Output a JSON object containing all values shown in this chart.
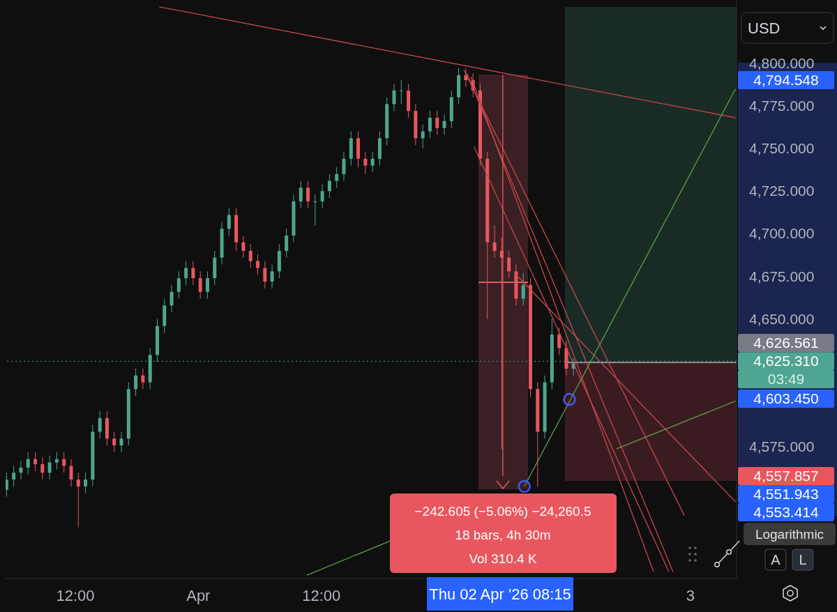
{
  "chart_data": {
    "type": "candlestick",
    "x": [
      "2026-03-31T05:18",
      "2026-03-31T06:00",
      "2026-03-31T06:42",
      "2026-03-31T07:24",
      "2026-03-31T08:06",
      "2026-03-31T08:48",
      "2026-03-31T09:30",
      "2026-03-31T10:12",
      "2026-03-31T10:54",
      "2026-03-31T11:36",
      "2026-03-31T12:18",
      "2026-03-31T13:00",
      "2026-03-31T13:42",
      "2026-03-31T14:24",
      "2026-03-31T15:06",
      "2026-03-31T15:48",
      "2026-03-31T16:30",
      "2026-03-31T17:12",
      "2026-03-31T17:54",
      "2026-03-31T18:36",
      "2026-03-31T19:18",
      "2026-03-31T20:00",
      "2026-03-31T20:42",
      "2026-03-31T21:24",
      "2026-03-31T22:06",
      "2026-03-31T22:48",
      "2026-03-31T23:30",
      "2026-04-01T00:12",
      "2026-04-01T00:54",
      "2026-04-01T01:36",
      "2026-04-01T02:18",
      "2026-04-01T03:00",
      "2026-04-01T03:42",
      "2026-04-01T04:24",
      "2026-04-01T05:06",
      "2026-04-01T05:48",
      "2026-04-01T06:30",
      "2026-04-01T07:12",
      "2026-04-01T07:54",
      "2026-04-01T08:36",
      "2026-04-01T09:18",
      "2026-04-01T10:00",
      "2026-04-01T10:42",
      "2026-04-01T11:24",
      "2026-04-01T12:06",
      "2026-04-01T12:48",
      "2026-04-01T13:30",
      "2026-04-01T14:12",
      "2026-04-01T14:54",
      "2026-04-01T15:36",
      "2026-04-01T16:18",
      "2026-04-01T17:00",
      "2026-04-01T17:42",
      "2026-04-01T18:24",
      "2026-04-01T19:06",
      "2026-04-01T19:48",
      "2026-04-01T20:30",
      "2026-04-01T21:12",
      "2026-04-01T21:54",
      "2026-04-01T22:36",
      "2026-04-01T23:18",
      "2026-04-02T00:00",
      "2026-04-02T00:42",
      "2026-04-02T01:24",
      "2026-04-02T02:06",
      "2026-04-02T02:48",
      "2026-04-02T03:30",
      "2026-04-02T04:12",
      "2026-04-02T04:54",
      "2026-04-02T05:36",
      "2026-04-02T06:18",
      "2026-04-02T07:00",
      "2026-04-02T07:42",
      "2026-04-02T08:24",
      "2026-04-02T09:06",
      "2026-04-02T09:48",
      "2026-04-02T10:30",
      "2026-04-02T11:12",
      "2026-04-02T11:54",
      "2026-04-02T12:36"
    ],
    "ohlc": [
      [
        4550,
        4560,
        4546,
        4556
      ],
      [
        4556,
        4564,
        4552,
        4560
      ],
      [
        4560,
        4567,
        4556,
        4563
      ],
      [
        4563,
        4572,
        4559,
        4568
      ],
      [
        4568,
        4572,
        4561,
        4565
      ],
      [
        4565,
        4569,
        4556,
        4560
      ],
      [
        4560,
        4570,
        4556,
        4566
      ],
      [
        4566,
        4572,
        4562,
        4568
      ],
      [
        4568,
        4572,
        4560,
        4564
      ],
      [
        4564,
        4568,
        4552,
        4556
      ],
      [
        4556,
        4560,
        4528,
        4552
      ],
      [
        4552,
        4560,
        4548,
        4556
      ],
      [
        4556,
        4588,
        4552,
        4584
      ],
      [
        4584,
        4596,
        4580,
        4592
      ],
      [
        4592,
        4596,
        4576,
        4580
      ],
      [
        4580,
        4584,
        4572,
        4576
      ],
      [
        4576,
        4584,
        4572,
        4580
      ],
      [
        4580,
        4613,
        4576,
        4609
      ],
      [
        4609,
        4621,
        4605,
        4617
      ],
      [
        4617,
        4621,
        4609,
        4613
      ],
      [
        4613,
        4633,
        4609,
        4629
      ],
      [
        4629,
        4650,
        4625,
        4646
      ],
      [
        4646,
        4662,
        4642,
        4658
      ],
      [
        4658,
        4670,
        4654,
        4666
      ],
      [
        4666,
        4678,
        4662,
        4674
      ],
      [
        4674,
        4684,
        4670,
        4680
      ],
      [
        4680,
        4684,
        4670,
        4674
      ],
      [
        4674,
        4678,
        4662,
        4666
      ],
      [
        4666,
        4678,
        4662,
        4674
      ],
      [
        4674,
        4690,
        4670,
        4686
      ],
      [
        4686,
        4707,
        4682,
        4703
      ],
      [
        4703,
        4715,
        4699,
        4711
      ],
      [
        4711,
        4715,
        4690,
        4695
      ],
      [
        4695,
        4699,
        4686,
        4690
      ],
      [
        4690,
        4694,
        4680,
        4684
      ],
      [
        4684,
        4688,
        4676,
        4680
      ],
      [
        4680,
        4684,
        4668,
        4672
      ],
      [
        4672,
        4682,
        4668,
        4678
      ],
      [
        4678,
        4694,
        4674,
        4690
      ],
      [
        4690,
        4703,
        4686,
        4699
      ],
      [
        4699,
        4723,
        4695,
        4719
      ],
      [
        4719,
        4731,
        4715,
        4727
      ],
      [
        4727,
        4731,
        4715,
        4719
      ],
      [
        4719,
        4723,
        4705,
        4719
      ],
      [
        4719,
        4729,
        4715,
        4725
      ],
      [
        4725,
        4735,
        4721,
        4731
      ],
      [
        4731,
        4739,
        4727,
        4735
      ],
      [
        4735,
        4748,
        4731,
        4744
      ],
      [
        4744,
        4760,
        4740,
        4756
      ],
      [
        4756,
        4760,
        4739,
        4744
      ],
      [
        4744,
        4748,
        4735,
        4740
      ],
      [
        4740,
        4748,
        4736,
        4744
      ],
      [
        4744,
        4760,
        4740,
        4756
      ],
      [
        4756,
        4780,
        4752,
        4776
      ],
      [
        4776,
        4788,
        4772,
        4784
      ],
      [
        4784,
        4790,
        4776,
        4784
      ],
      [
        4784,
        4788,
        4768,
        4772
      ],
      [
        4772,
        4776,
        4752,
        4756
      ],
      [
        4756,
        4764,
        4750,
        4760
      ],
      [
        4760,
        4772,
        4756,
        4768
      ],
      [
        4768,
        4772,
        4758,
        4762
      ],
      [
        4762,
        4770,
        4758,
        4766
      ],
      [
        4766,
        4784,
        4762,
        4780
      ],
      [
        4780,
        4797,
        4776,
        4793
      ],
      [
        4793,
        4797,
        4786,
        4790
      ],
      [
        4790,
        4794,
        4780,
        4784
      ],
      [
        4784,
        4788,
        4740,
        4744
      ],
      [
        4744,
        4748,
        4650,
        4695
      ],
      [
        4695,
        4705,
        4686,
        4690
      ],
      [
        4690,
        4698,
        4574,
        4686
      ],
      [
        4686,
        4690,
        4674,
        4678
      ],
      [
        4678,
        4682,
        4658,
        4662
      ],
      [
        4662,
        4677,
        4658,
        4670
      ],
      [
        4670,
        4674,
        4604,
        4609
      ],
      [
        4609,
        4613,
        4552,
        4584
      ],
      [
        4584,
        4617,
        4580,
        4613
      ],
      [
        4613,
        4650,
        4609,
        4641
      ],
      [
        4641,
        4645,
        4629,
        4633
      ],
      [
        4633,
        4637,
        4617,
        4621
      ],
      [
        4621,
        4627,
        4617,
        4625
      ]
    ],
    "series": [
      {
        "type": "line",
        "color": "#c9474f",
        "x": [
          "2026-03-31T20:12",
          "2026-04-03T04:24"
        ],
        "values": [
          4833,
          4768
        ]
      },
      {
        "type": "line",
        "color": "#c9474f",
        "x": [
          "2026-04-02T01:54",
          "2026-04-02T23:24"
        ],
        "values": [
          4796,
          4535
        ]
      },
      {
        "type": "line",
        "color": "#c9474f",
        "x": [
          "2026-04-02T02:12",
          "2026-04-02T22:18"
        ],
        "values": [
          4794,
          4502
        ]
      },
      {
        "type": "line",
        "color": "#c9474f",
        "x": [
          "2026-04-02T02:36",
          "2026-04-02T20:24"
        ],
        "values": [
          4792,
          4502
        ]
      },
      {
        "type": "line",
        "color": "#c9474f",
        "x": [
          "2026-04-02T02:54",
          "2026-04-02T21:54"
        ],
        "values": [
          4751,
          4502
        ]
      },
      {
        "type": "line",
        "color": "#c9474f",
        "x": [
          "2026-04-02T07:00",
          "2026-04-03T04:24"
        ],
        "values": [
          4676,
          4543
        ]
      },
      {
        "type": "line",
        "color": "#5f9e4f",
        "x": [
          "2026-04-02T07:48",
          "2026-04-03T04:24"
        ],
        "values": [
          4552,
          4785
        ]
      },
      {
        "type": "line",
        "color": "#5f9e4f",
        "x": [
          "2026-04-01T10:36",
          "2026-04-01T18:42"
        ],
        "values": [
          4500,
          4520
        ]
      },
      {
        "type": "line",
        "color": "#5f9e4f",
        "x": [
          "2026-04-02T16:48",
          "2026-04-03T04:24"
        ],
        "values": [
          4574,
          4602
        ]
      },
      {
        "type": "line",
        "color": "#e8575f",
        "x": [
          "2026-04-02T05:42",
          "2026-04-02T05:42"
        ],
        "values": [
          4793,
          4558
        ]
      },
      {
        "type": "scatter",
        "color": "#3d5afe",
        "marker": "circle",
        "x": [
          "2026-04-02T07:48",
          "2026-04-02T12:12"
        ],
        "values": [
          4552,
          4603
        ]
      }
    ],
    "xlim": [
      "2026-03-31T05:12",
      "2026-04-03T04:30"
    ],
    "xticks": [
      {
        "value": "2026-03-31T12:00",
        "label": "12:00"
      },
      {
        "value": "2026-04-01",
        "label": "Apr"
      },
      {
        "value": "2026-04-01T12:00",
        "label": "12:00"
      },
      {
        "value": "2026-04-03",
        "label": "3"
      }
    ],
    "ylim": [
      4498,
      4837
    ],
    "yticks": [
      {
        "value": 4575,
        "label": "4,575.000"
      },
      {
        "value": 4650,
        "label": "4,650.000"
      },
      {
        "value": 4675,
        "label": "4,675.000"
      },
      {
        "value": 4700,
        "label": "4,700.000"
      },
      {
        "value": 4725,
        "label": "4,725.000"
      },
      {
        "value": 4750,
        "label": "4,750.000"
      },
      {
        "value": 4775,
        "label": "4,775.000"
      },
      {
        "value": 4800,
        "label": "4,800.000"
      }
    ],
    "ref_lines": [
      {
        "axis": "y",
        "value": 4625.31,
        "label": "4,625.310",
        "color": "#4ea690",
        "line_style": "dotted"
      }
    ],
    "annotations": [
      "4,794.548",
      "4,626.561",
      "03:49",
      "4,603.450",
      "4,557.857",
      "4,551.943",
      "4,553.414",
      "−242.605 (−5.06%) −24,260.5",
      "18 bars, 4h 30m",
      "Vol 310.4 K",
      "Thu 02 Apr '26 08:15",
      "USD",
      "Logarithmic",
      "A",
      "L"
    ],
    "marker": "none",
    "line_style": "solid"
  }
}
